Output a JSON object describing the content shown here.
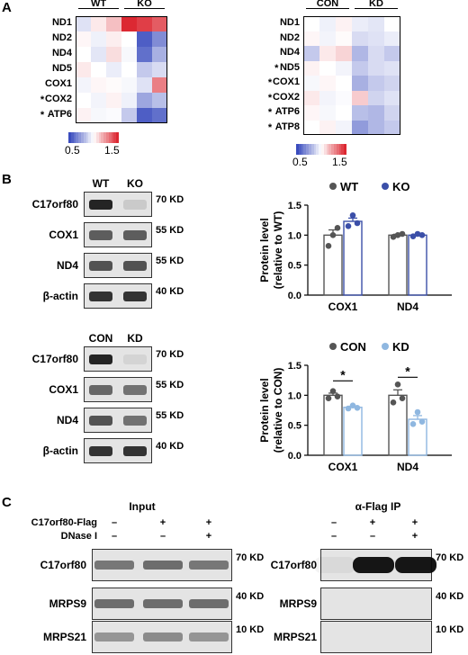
{
  "panels": {
    "a": "A",
    "b": "B",
    "c": "C"
  },
  "heatmap_left": {
    "groups": [
      "WT",
      "KO"
    ],
    "rows": [
      "ND1",
      "ND2",
      "ND4",
      "ND5",
      "COX1",
      "COX2",
      "ATP6"
    ],
    "stars": [
      "",
      "",
      "",
      "",
      "",
      "*",
      "*"
    ],
    "values": [
      [
        0.92,
        1.05,
        1.15,
        1.5,
        1.45,
        1.38
      ],
      [
        1.02,
        0.96,
        1.04,
        1.0,
        0.55,
        0.68
      ],
      [
        1.0,
        0.93,
        1.08,
        0.98,
        0.6,
        0.78
      ],
      [
        1.05,
        1.0,
        0.95,
        1.0,
        0.85,
        0.9
      ],
      [
        0.97,
        1.02,
        1.01,
        0.98,
        0.92,
        1.3
      ],
      [
        1.0,
        0.97,
        1.03,
        0.96,
        0.75,
        0.82
      ],
      [
        1.03,
        0.98,
        0.99,
        0.85,
        0.55,
        0.6
      ]
    ],
    "scale_min": "0.5",
    "scale_max": "1.5"
  },
  "heatmap_right": {
    "groups": [
      "CON",
      "KD"
    ],
    "rows": [
      "ND1",
      "ND2",
      "ND4",
      "ND5",
      "COX1",
      "COX2",
      "ATP6",
      "ATP8"
    ],
    "stars": [
      "",
      "",
      "",
      "*",
      "*",
      "*",
      "*",
      "*"
    ],
    "values": [
      [
        1.0,
        0.96,
        1.03,
        0.95,
        0.93,
        1.0
      ],
      [
        1.02,
        0.97,
        1.01,
        0.9,
        0.92,
        0.95
      ],
      [
        0.85,
        1.05,
        1.1,
        0.8,
        0.9,
        0.85
      ],
      [
        1.03,
        1.0,
        0.97,
        0.85,
        0.9,
        0.92
      ],
      [
        0.98,
        1.02,
        1.0,
        0.78,
        0.85,
        0.88
      ],
      [
        1.05,
        0.97,
        0.99,
        1.12,
        0.88,
        0.92
      ],
      [
        1.02,
        0.98,
        1.0,
        0.82,
        0.8,
        0.88
      ],
      [
        1.0,
        1.03,
        0.97,
        0.72,
        0.8,
        0.85
      ]
    ],
    "scale_min": "0.5",
    "scale_max": "1.5"
  },
  "blot_b_top": {
    "lanes": [
      "WT",
      "KO"
    ],
    "rows": [
      {
        "label": "C17orf80",
        "kd": "70 KD"
      },
      {
        "label": "COX1",
        "kd": "55 KD"
      },
      {
        "label": "ND4",
        "kd": "55 KD"
      },
      {
        "label": "β-actin",
        "kd": "40 KD"
      }
    ]
  },
  "blot_b_bottom": {
    "lanes": [
      "CON",
      "KD"
    ],
    "rows": [
      {
        "label": "C17orf80",
        "kd": "70 KD"
      },
      {
        "label": "COX1",
        "kd": "55 KD"
      },
      {
        "label": "ND4",
        "kd": "55 KD"
      },
      {
        "label": "β-actin",
        "kd": "40 KD"
      }
    ]
  },
  "chart_data": [
    {
      "type": "bar",
      "categories": [
        "COX1",
        "ND4"
      ],
      "series": [
        {
          "name": "WT",
          "values": [
            1.0,
            1.0
          ],
          "points": [
            [
              0.82,
              1.0,
              1.12
            ],
            [
              0.97,
              1.0,
              1.02
            ]
          ],
          "color": "#555555"
        },
        {
          "name": "KO",
          "values": [
            1.23,
            1.0
          ],
          "points": [
            [
              1.15,
              1.33,
              1.2
            ],
            [
              0.98,
              1.02,
              1.0
            ]
          ],
          "color": "#3b4fa8"
        }
      ],
      "ylabel_line1": "Protein level",
      "ylabel_line2": "(relative to WT)",
      "ylim": [
        0,
        1.5
      ],
      "yticks": [
        "0.0",
        "0.5",
        "1.0",
        "1.5"
      ],
      "significance": [
        "",
        ""
      ]
    },
    {
      "type": "bar",
      "categories": [
        "COX1",
        "ND4"
      ],
      "series": [
        {
          "name": "CON",
          "values": [
            1.0,
            1.0
          ],
          "points": [
            [
              0.95,
              1.07,
              0.98
            ],
            [
              0.88,
              1.18,
              0.95
            ]
          ],
          "color": "#555555"
        },
        {
          "name": "KD",
          "values": [
            0.8,
            0.6
          ],
          "points": [
            [
              0.78,
              0.83,
              0.79
            ],
            [
              0.52,
              0.72,
              0.56
            ]
          ],
          "color": "#8fb7e0"
        }
      ],
      "ylabel_line1": "Protein level",
      "ylabel_line2": "(relative to CON)",
      "ylim": [
        0,
        1.5
      ],
      "yticks": [
        "0.0",
        "0.5",
        "1.0",
        "1.5"
      ],
      "significance": [
        "*",
        "*"
      ]
    }
  ],
  "panel_c": {
    "input_title": "Input",
    "ip_title": "α-Flag IP",
    "cond_labels": [
      "C17orf80-Flag",
      "DNase I"
    ],
    "cond_left": [
      [
        "–",
        "+",
        "+"
      ],
      [
        "–",
        "–",
        "+"
      ]
    ],
    "cond_right": [
      [
        "–",
        "+",
        "+"
      ],
      [
        "–",
        "–",
        "+"
      ]
    ],
    "rows": [
      {
        "label": "C17orf80",
        "kd": "70 KD"
      },
      {
        "label": "MRPS9",
        "kd": "40 KD"
      },
      {
        "label": "MRPS21",
        "kd": "10 KD"
      }
    ]
  }
}
